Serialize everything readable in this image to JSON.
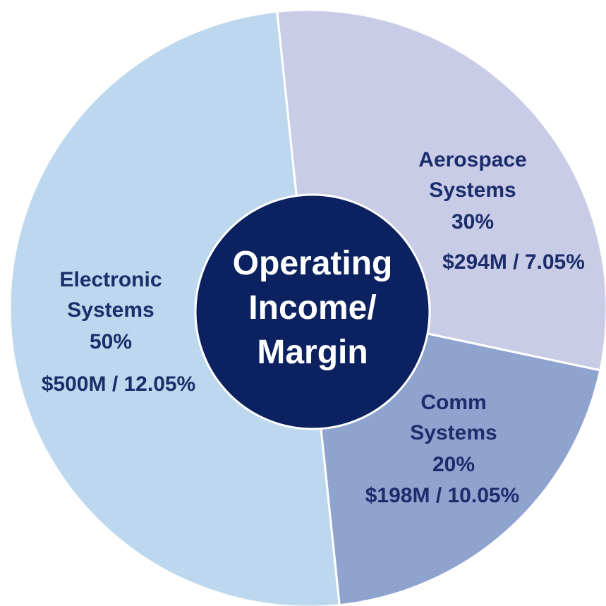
{
  "chart_data": {
    "type": "pie",
    "title": "Operating Income/ Margin",
    "categories": [
      "Aerospace Systems",
      "Comm Systems",
      "Electronic Systems"
    ],
    "values": [
      30,
      20,
      50
    ],
    "value_labels": [
      "30%",
      "20%",
      "50%"
    ],
    "details": [
      "$294M / 7.05%",
      "$198M / 10.05%",
      "$500M / 12.05%"
    ],
    "colors": [
      "#c9cce6",
      "#8fa3cf",
      "#bdd7ee"
    ],
    "center_color": "#0b2160"
  }
}
